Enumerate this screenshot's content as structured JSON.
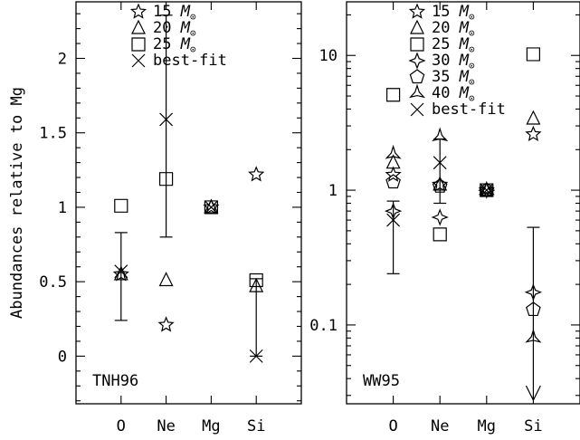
{
  "chart_data": [
    {
      "type": "scatter",
      "panel_label": "TNH96",
      "ylabel": "Abundances relative to Mg",
      "yscale": "linear",
      "ylim": [
        -0.32,
        2.38
      ],
      "categories": [
        "O",
        "Ne",
        "Mg",
        "Si"
      ],
      "yticks": [
        0,
        0.5,
        1,
        1.5,
        2
      ],
      "ytick_labels": [
        "0",
        "0.5",
        "1",
        "1.5",
        "2"
      ],
      "legend_position": "top-right",
      "series": [
        {
          "name": "15",
          "marker": "star",
          "values": [
            0.55,
            0.21,
            1.0,
            1.22
          ]
        },
        {
          "name": "20",
          "marker": "triangle",
          "values": [
            0.55,
            0.51,
            1.0,
            0.47
          ]
        },
        {
          "name": "25",
          "marker": "square",
          "values": [
            1.01,
            1.19,
            1.0,
            0.51
          ]
        },
        {
          "name": "best-fit",
          "marker": "cross",
          "values": [
            0.57,
            1.59,
            1.0,
            0.0
          ],
          "errors": [
            [
              0.24,
              0.83
            ],
            [
              0.8,
              2.29
            ],
            null,
            [
              0.0,
              0.52
            ]
          ]
        }
      ]
    },
    {
      "type": "scatter",
      "panel_label": "WW95",
      "yscale": "log",
      "ylim": [
        0.026,
        25
      ],
      "categories": [
        "O",
        "Ne",
        "Mg",
        "Si"
      ],
      "yticks": [
        0.1,
        1,
        10
      ],
      "ytick_labels": [
        "0.1",
        "1",
        "10"
      ],
      "legend_position": "top-right",
      "series": [
        {
          "name": "15",
          "marker": "star",
          "values": [
            1.3,
            1.1,
            1.0,
            2.6
          ]
        },
        {
          "name": "20",
          "marker": "triangle",
          "values": [
            1.6,
            1.1,
            1.0,
            3.4
          ]
        },
        {
          "name": "25",
          "marker": "square",
          "values": [
            5.1,
            0.47,
            1.0,
            10.2
          ]
        },
        {
          "name": "30",
          "marker": "star4",
          "values": [
            0.7,
            0.63,
            1.0,
            0.175
          ]
        },
        {
          "name": "35",
          "marker": "pentagon",
          "values": [
            1.15,
            1.07,
            1.0,
            0.13
          ]
        },
        {
          "name": "40",
          "marker": "tri-star",
          "values": [
            1.85,
            2.5,
            1.0,
            0.08
          ]
        },
        {
          "name": "best-fit",
          "marker": "cross",
          "values": [
            0.6,
            1.6,
            1.0,
            null
          ],
          "errors": [
            [
              0.24,
              0.83
            ],
            [
              0.8,
              2.4
            ],
            null,
            [
              0.03,
              0.53
            ]
          ],
          "upper_limit_arrow": [
            null,
            null,
            null,
            true
          ]
        }
      ]
    }
  ],
  "legend_mass_unit": "M",
  "legend_mass_subscript": "⊙"
}
